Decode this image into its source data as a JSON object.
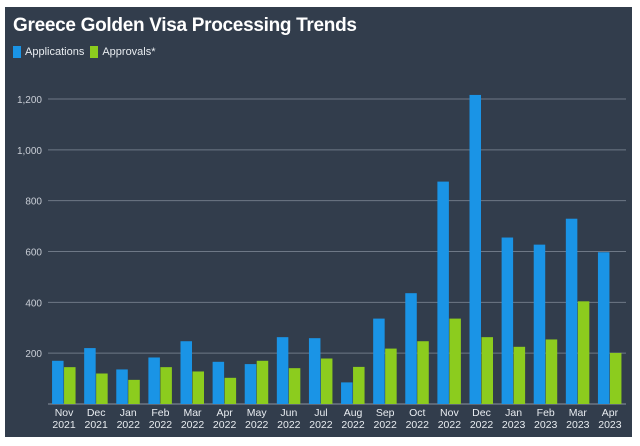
{
  "chart_data": {
    "type": "bar",
    "title": "Greece Golden Visa Processing Trends",
    "xlabel": "",
    "ylabel": "",
    "ylim": [
      0,
      1200
    ],
    "yticks": [
      200,
      400,
      600,
      800,
      1000,
      1200
    ],
    "ytick_labels": [
      "200",
      "400",
      "600",
      "800",
      "1,000",
      "1,200"
    ],
    "grid": true,
    "legend": "top-left",
    "categories": [
      [
        "Nov",
        "2021"
      ],
      [
        "Dec",
        "2021"
      ],
      [
        "Jan",
        "2022"
      ],
      [
        "Feb",
        "2022"
      ],
      [
        "Mar",
        "2022"
      ],
      [
        "Apr",
        "2022"
      ],
      [
        "May",
        "2022"
      ],
      [
        "Jun",
        "2022"
      ],
      [
        "Jul",
        "2022"
      ],
      [
        "Aug",
        "2022"
      ],
      [
        "Sep",
        "2022"
      ],
      [
        "Oct",
        "2022"
      ],
      [
        "Nov",
        "2022"
      ],
      [
        "Dec",
        "2022"
      ],
      [
        "Jan",
        "2023"
      ],
      [
        "Feb",
        "2023"
      ],
      [
        "Mar",
        "2023"
      ],
      [
        "Apr",
        "2023"
      ]
    ],
    "series": [
      {
        "name": "Applications",
        "color": "#1a94e6",
        "values": [
          170,
          220,
          136,
          183,
          247,
          166,
          157,
          263,
          259,
          85,
          336,
          436,
          875,
          1216,
          655,
          627,
          729,
          597
        ]
      },
      {
        "name": "Approvals*",
        "color": "#8ccc1e",
        "values": [
          145,
          120,
          95,
          145,
          128,
          103,
          170,
          141,
          179,
          146,
          218,
          247,
          336,
          263,
          225,
          254,
          404,
          201
        ]
      }
    ]
  }
}
